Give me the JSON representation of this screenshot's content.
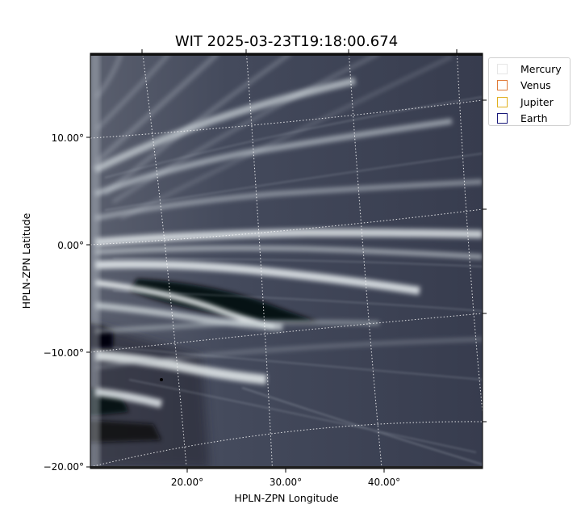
{
  "figure": {
    "title": "WIT 2025-03-23T19:18:00.674",
    "xlabel": "HPLN-ZPN Longitude",
    "ylabel": "HPLN-ZPN Latitude",
    "x_ticks": [
      "20.00°",
      "30.00°",
      "40.00°"
    ],
    "y_ticks": [
      "10.00°",
      "0.00°",
      "−10.00°",
      "−20.00°"
    ],
    "colormap": "bone",
    "grid": "dotted white coordinate grid",
    "legend": {
      "placement": "outside-right-top",
      "items": [
        {
          "label": "Mercury",
          "color": "#e6e6e6"
        },
        {
          "label": "Venus",
          "color": "#e07b39"
        },
        {
          "label": "Jupiter",
          "color": "#e0b020"
        },
        {
          "label": "Earth",
          "color": "#1a1a7a"
        }
      ]
    }
  }
}
